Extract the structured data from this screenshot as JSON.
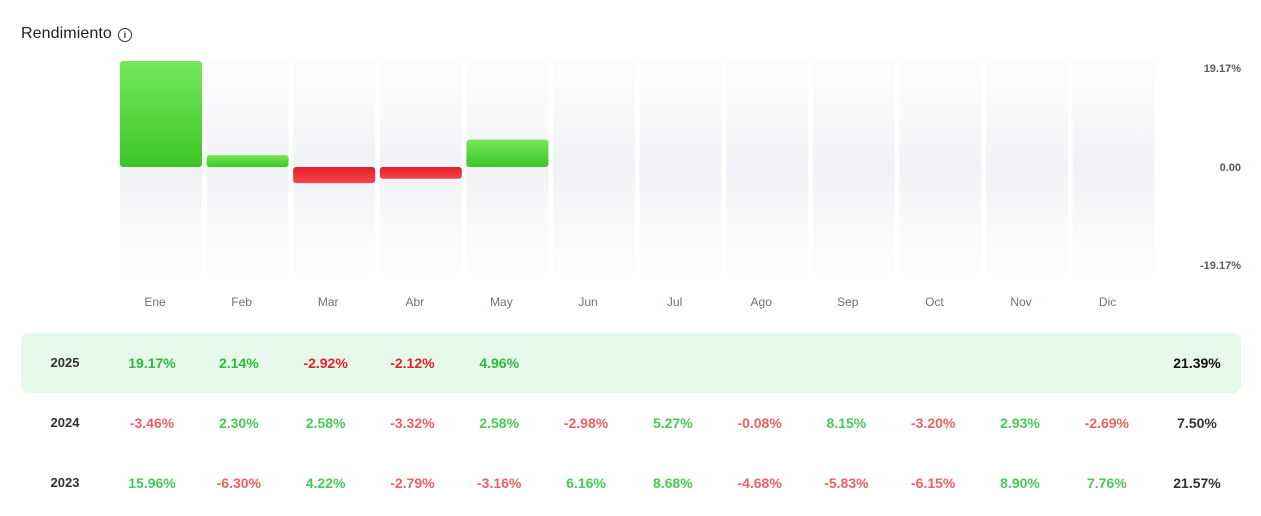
{
  "title": "Rendimiento",
  "icons": {
    "info": "info-icon"
  },
  "chart_data": {
    "type": "bar",
    "categories": [
      "Ene",
      "Feb",
      "Mar",
      "Abr",
      "May",
      "Jun",
      "Jul",
      "Ago",
      "Sep",
      "Oct",
      "Nov",
      "Dic"
    ],
    "values": [
      19.17,
      2.14,
      -2.92,
      -2.12,
      4.96,
      null,
      null,
      null,
      null,
      null,
      null,
      null
    ],
    "ylim": [
      -19.17,
      19.17
    ],
    "y_tick_labels": [
      "19.17%",
      "0.00",
      "-19.17%"
    ],
    "colors": {
      "positive": "#4cd23a",
      "negative": "#e8242c"
    }
  },
  "table": {
    "rows": [
      {
        "year": "2025",
        "current": true,
        "values": [
          "19.17%",
          "2.14%",
          "-2.92%",
          "-2.12%",
          "4.96%",
          "",
          "",
          "",
          "",
          "",
          "",
          ""
        ],
        "total": "21.39%"
      },
      {
        "year": "2024",
        "current": false,
        "values": [
          "-3.46%",
          "2.30%",
          "2.58%",
          "-3.32%",
          "2.58%",
          "-2.98%",
          "5.27%",
          "-0.08%",
          "8.15%",
          "-3.20%",
          "2.93%",
          "-2.69%"
        ],
        "total": "7.50%"
      },
      {
        "year": "2023",
        "current": false,
        "values": [
          "15.96%",
          "-6.30%",
          "4.22%",
          "-2.79%",
          "-3.16%",
          "6.16%",
          "8.68%",
          "-4.68%",
          "-5.83%",
          "-6.15%",
          "8.90%",
          "7.76%"
        ],
        "total": "21.57%"
      }
    ]
  }
}
